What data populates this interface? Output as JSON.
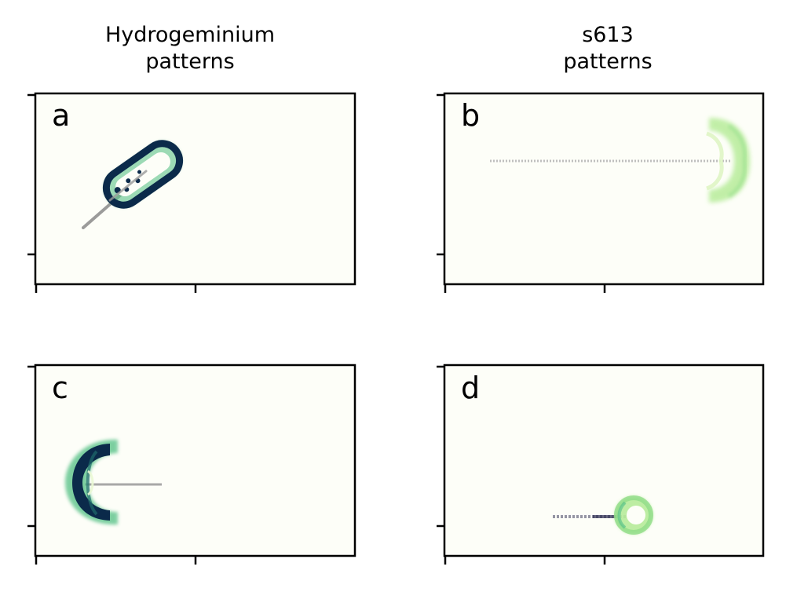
{
  "figure": {
    "column_titles": [
      "Hydrogeminium\npatterns",
      "s613\npatterns"
    ],
    "background_color": "#fdfef8",
    "colormap": [
      "#0b2a4a",
      "#1e6b6b",
      "#5cc38a",
      "#b7ec9a",
      "#eaf8d4"
    ]
  },
  "chart_data": [
    {
      "type": "image",
      "panel_label": "a",
      "pattern": "Hydrogeminium",
      "xlabel": "",
      "ylabel": "",
      "xticks": [
        "",
        ""
      ],
      "yticks": [
        "",
        ""
      ],
      "trajectory": {
        "color": "#8a8a8a",
        "style": "solid diagonal streak"
      },
      "creature": {
        "shape": "elongated ring",
        "orientation": "diagonal up-right",
        "dominant_color": "#0b2a4a"
      }
    },
    {
      "type": "image",
      "panel_label": "b",
      "pattern": "s613",
      "xlabel": "",
      "ylabel": "",
      "xticks": [
        "",
        ""
      ],
      "yticks": [
        "",
        ""
      ],
      "trajectory": {
        "color": "#b0b0b0",
        "style": "faint horizontal streak"
      },
      "creature": {
        "shape": "crescent",
        "orientation": "facing right",
        "dominant_color": "#b7ec9a"
      }
    },
    {
      "type": "image",
      "panel_label": "c",
      "pattern": "Hydrogeminium",
      "xlabel": "",
      "ylabel": "",
      "xticks": [
        "",
        ""
      ],
      "yticks": [
        "",
        ""
      ],
      "trajectory": {
        "color": "#9a9a9a",
        "style": "horizontal streak"
      },
      "creature": {
        "shape": "crescent",
        "orientation": "facing left",
        "dominant_color": "#0b2a4a"
      }
    },
    {
      "type": "image",
      "panel_label": "d",
      "pattern": "s613",
      "xlabel": "",
      "ylabel": "",
      "xticks": [
        "",
        ""
      ],
      "yticks": [
        "",
        ""
      ],
      "trajectory": {
        "color": "#6a6a80",
        "style": "dotted horizontal streak"
      },
      "creature": {
        "shape": "small ring",
        "orientation": "round",
        "dominant_color": "#b7ec9a"
      }
    }
  ]
}
